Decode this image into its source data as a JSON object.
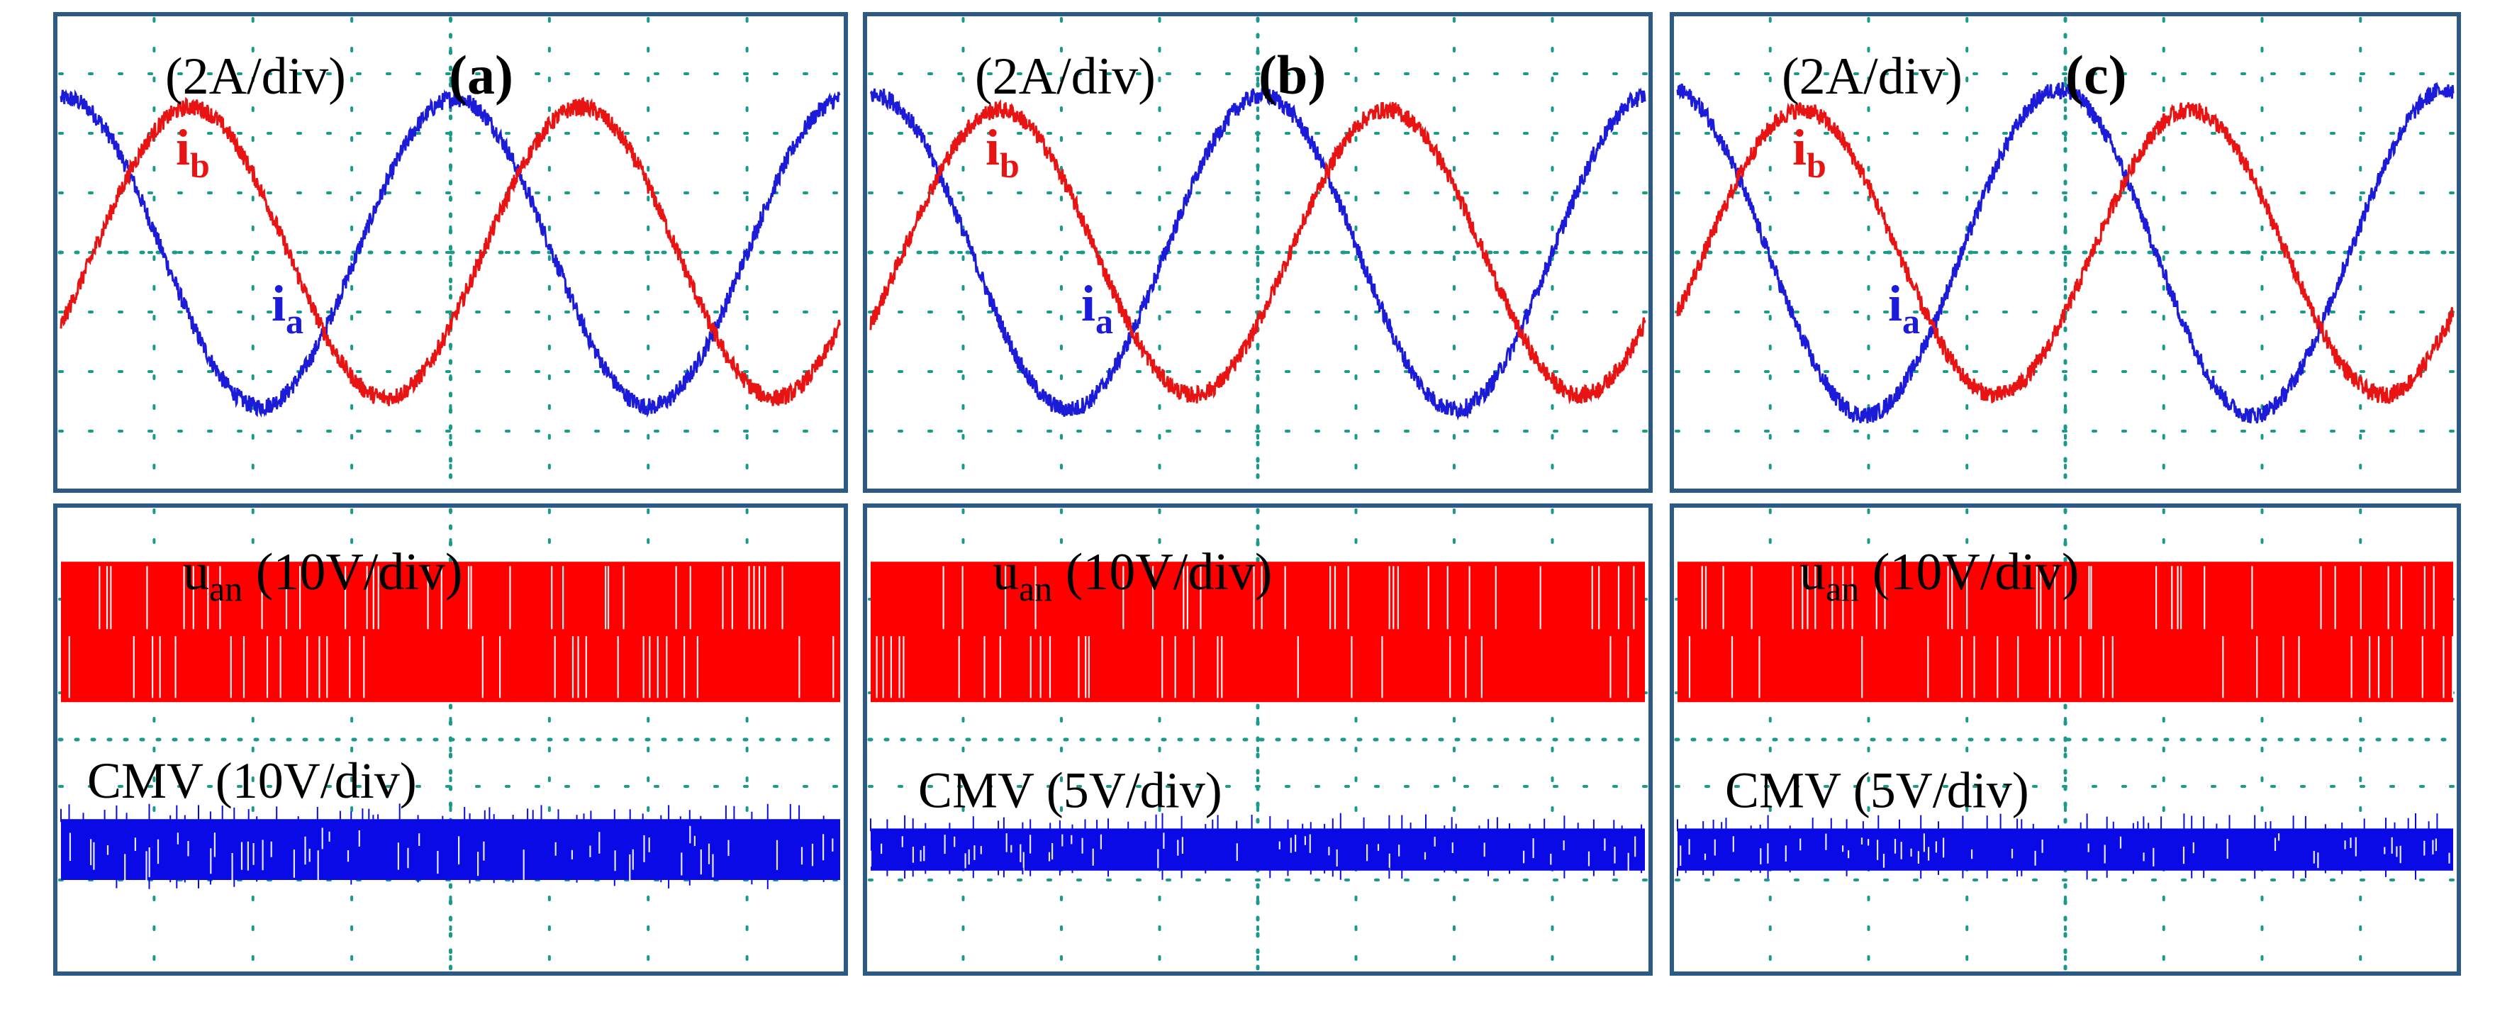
{
  "figure": {
    "colors": {
      "frame": "#2b5a86",
      "grid": "#1a9a8a",
      "ia": "#1b1bd8",
      "ib": "#e81414",
      "uan": "#ff0000",
      "cmv": "#0a0ae6",
      "text": "#000000"
    }
  },
  "chart_data": [
    {
      "type": "line",
      "panel": "top",
      "id": "a",
      "title": "(a)",
      "scale_label": "(2A/div)",
      "ylim": [
        -4,
        4
      ],
      "grid": {
        "x_divisions": 8,
        "y_divisions": 8
      },
      "series": [
        {
          "name": "ia",
          "label_main": "i",
          "label_sub": "a",
          "color": "ib-blue",
          "amplitude": 2.65,
          "period_div": 4.0,
          "phase_deg": 86,
          "offset": 0,
          "noise": 0.15
        },
        {
          "name": "ib",
          "label_main": "i",
          "label_sub": "b",
          "color": "ib-red",
          "amplitude": 2.5,
          "period_div": 4.0,
          "phase_deg": -30,
          "offset": 0,
          "noise": 0.15
        }
      ]
    },
    {
      "type": "line",
      "panel": "top",
      "id": "b",
      "title": "(b)",
      "scale_label": "(2A/div)",
      "ylim": [
        -4,
        4
      ],
      "grid": {
        "x_divisions": 8,
        "y_divisions": 8
      },
      "series": [
        {
          "name": "ia",
          "label_main": "i",
          "label_sub": "a",
          "color": "blue",
          "amplitude": 2.7,
          "period_div": 4.0,
          "phase_deg": 86,
          "offset": 0,
          "noise": 0.15
        },
        {
          "name": "ib",
          "label_main": "i",
          "label_sub": "b",
          "color": "red",
          "amplitude": 2.45,
          "period_div": 4.0,
          "phase_deg": -30,
          "offset": 0,
          "noise": 0.15
        }
      ]
    },
    {
      "type": "line",
      "panel": "top",
      "id": "c",
      "title": "(c)",
      "scale_label": "(2A/div)",
      "ylim": [
        -4,
        4
      ],
      "grid": {
        "x_divisions": 8,
        "y_divisions": 8
      },
      "series": [
        {
          "name": "ia",
          "label_main": "i",
          "label_sub": "a",
          "color": "blue",
          "amplitude": 2.8,
          "period_div": 4.0,
          "phase_deg": 96,
          "offset": 0,
          "noise": 0.15
        },
        {
          "name": "ib",
          "label_main": "i",
          "label_sub": "b",
          "color": "red",
          "amplitude": 2.45,
          "period_div": 4.0,
          "phase_deg": -25,
          "offset": 0,
          "noise": 0.15
        }
      ]
    },
    {
      "type": "area",
      "panel": "bottom",
      "id": "a",
      "grid": {
        "x_divisions": 8,
        "y_divisions": 5
      },
      "uan_label_main": "u",
      "uan_label_sub": "an",
      "uan_label_scale": " (10V/div)",
      "cmv_label": "CMV (10V/div)",
      "uan_band_div": [
        0.6,
        2.1
      ],
      "cmv_band_div": [
        3.35,
        4.0
      ]
    },
    {
      "type": "area",
      "panel": "bottom",
      "id": "b",
      "grid": {
        "x_divisions": 8,
        "y_divisions": 5
      },
      "uan_label_main": "u",
      "uan_label_sub": "an",
      "uan_label_scale": " (10V/div)",
      "cmv_label": "CMV (5V/div)",
      "uan_band_div": [
        0.6,
        2.1
      ],
      "cmv_band_div": [
        3.45,
        3.9
      ]
    },
    {
      "type": "area",
      "panel": "bottom",
      "id": "c",
      "grid": {
        "x_divisions": 8,
        "y_divisions": 5
      },
      "uan_label_main": "u",
      "uan_label_sub": "an",
      "uan_label_scale": " (10V/div)",
      "cmv_label": "CMV (5V/div)",
      "uan_band_div": [
        0.6,
        2.1
      ],
      "cmv_band_div": [
        3.45,
        3.9
      ]
    }
  ]
}
